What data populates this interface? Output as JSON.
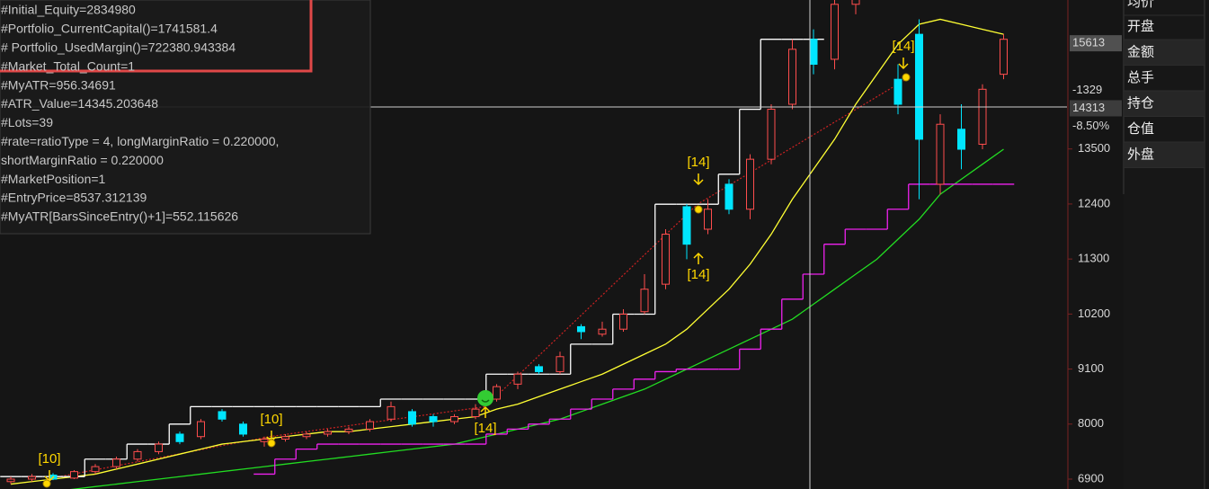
{
  "info_panel": {
    "lines": [
      "#Initial_Equity=2834980",
      "#Portfolio_CurrentCapital()=1741581.4",
      "# Portfolio_UsedMargin()=722380.943384",
      "#Market_Total_Count=1",
      "#MyATR=956.34691",
      "#ATR_Value=14345.203648",
      "#Lots=39",
      "#rate=ratioType = 4, longMarginRatio = 0.220000,",
      "shortMarginRatio = 0.220000",
      "#MarketPosition=1",
      "#EntryPrice=8537.312139",
      "#MyATR[BarsSinceEntry()+1]=552.115626"
    ]
  },
  "quote_panel": {
    "labels": [
      "均价",
      "开盘",
      "金额",
      "总手",
      "持仓",
      "仓值",
      "外盘"
    ]
  },
  "chart": {
    "ylim": [
      6702,
      16486
    ],
    "price_axis": {
      "ticks": [
        13500,
        12400,
        11300,
        10200,
        9100,
        8000,
        6900
      ],
      "last_price": 15613,
      "cursor_price": 14313,
      "cursor_change": -1329,
      "cursor_change_pct": {
        "value": -8.5,
        "label": "-8.50%"
      }
    },
    "up_color": "#ff4d4d",
    "down_color": "#00e5ff",
    "candles": [
      [
        6850,
        6950,
        6800,
        6900
      ],
      [
        6900,
        7000,
        6850,
        6950
      ],
      [
        6980,
        7020,
        6880,
        6900
      ],
      [
        6920,
        7080,
        6900,
        7050
      ],
      [
        7050,
        7200,
        7000,
        7150
      ],
      [
        7150,
        7350,
        7100,
        7300
      ],
      [
        7300,
        7500,
        7250,
        7450
      ],
      [
        7450,
        7650,
        7400,
        7600
      ],
      [
        7800,
        7850,
        7600,
        7650
      ],
      [
        7750,
        8100,
        7700,
        8050
      ],
      [
        8250,
        8300,
        8050,
        8100
      ],
      [
        8000,
        8050,
        7750,
        7800
      ],
      [
        7650,
        7750,
        7550,
        7700
      ],
      [
        7700,
        7800,
        7650,
        7750
      ],
      [
        7750,
        7850,
        7700,
        7800
      ],
      [
        7800,
        7900,
        7750,
        7850
      ],
      [
        7850,
        7950,
        7800,
        7900
      ],
      [
        7900,
        8100,
        7850,
        8050
      ],
      [
        8100,
        8450,
        8050,
        8350
      ],
      [
        8250,
        8300,
        7950,
        8000
      ],
      [
        8150,
        8200,
        7950,
        8050
      ],
      [
        8050,
        8200,
        8000,
        8150
      ],
      [
        8150,
        8400,
        8100,
        8300
      ],
      [
        8500,
        8800,
        8450,
        8750
      ],
      [
        8800,
        9050,
        8700,
        9000
      ],
      [
        9150,
        9200,
        9000,
        9050
      ],
      [
        9050,
        9450,
        9000,
        9350
      ],
      [
        9950,
        10000,
        9700,
        9850
      ],
      [
        9800,
        10050,
        9750,
        9900
      ],
      [
        9900,
        10300,
        9850,
        10200
      ],
      [
        10250,
        11000,
        10200,
        10700
      ],
      [
        10800,
        11900,
        10700,
        11800
      ],
      [
        12350,
        12400,
        11300,
        11600
      ],
      [
        11900,
        12500,
        11800,
        12300
      ],
      [
        12800,
        12900,
        12200,
        12300
      ],
      [
        12300,
        13400,
        12100,
        13300
      ],
      [
        13300,
        14400,
        13200,
        14300
      ],
      [
        14400,
        15700,
        14300,
        15500
      ],
      [
        15700,
        15900,
        15000,
        15200
      ],
      [
        15300,
        16500,
        15100,
        16400
      ],
      [
        16400,
        16900,
        16200,
        16800
      ],
      [
        16700,
        17000,
        16500,
        16600
      ],
      [
        14900,
        15200,
        14200,
        14400
      ],
      [
        15800,
        16100,
        12500,
        13700
      ],
      [
        12800,
        14200,
        12600,
        14000
      ],
      [
        13900,
        14400,
        13100,
        13500
      ],
      [
        13600,
        14800,
        13500,
        14700
      ],
      [
        15000,
        15800,
        14900,
        15700
      ]
    ],
    "indicators": [
      {
        "color": "#ffff33",
        "style": "line",
        "values": [
          6800,
          6850,
          6900,
          6950,
          7000,
          7100,
          7200,
          7300,
          7400,
          7500,
          7600,
          7650,
          7700,
          7750,
          7800,
          7850,
          7850,
          7900,
          7950,
          8000,
          8050,
          8100,
          8150,
          8300,
          8400,
          8550,
          8700,
          8850,
          9000,
          9200,
          9400,
          9600,
          9900,
          10300,
          10700,
          11200,
          11800,
          12500,
          13100,
          13700,
          14400,
          15000,
          15600,
          16000,
          16100,
          16000,
          15900,
          15800
        ]
      },
      {
        "color": "#22dd22",
        "style": "line",
        "values": [
          6550,
          6600,
          6650,
          6700,
          6750,
          6800,
          6850,
          6900,
          6950,
          7000,
          7050,
          7100,
          7150,
          7200,
          7250,
          7300,
          7350,
          7400,
          7450,
          7500,
          7550,
          7600,
          7700,
          7800,
          7900,
          8000,
          8100,
          8250,
          8400,
          8550,
          8700,
          8900,
          9100,
          9300,
          9500,
          9700,
          9900,
          10100,
          10400,
          10700,
          11000,
          11300,
          11700,
          12100,
          12600,
          12900,
          13200,
          13500
        ]
      },
      {
        "color": "#ee22ee",
        "style": "step",
        "values": [
          null,
          null,
          null,
          null,
          null,
          null,
          null,
          null,
          null,
          null,
          null,
          null,
          7000,
          7300,
          7500,
          7600,
          7600,
          7600,
          7600,
          7600,
          7600,
          7600,
          7600,
          7800,
          7900,
          8000,
          8100,
          8300,
          8500,
          8700,
          8900,
          9050,
          9100,
          9100,
          9100,
          9500,
          9900,
          10500,
          11000,
          11600,
          11900,
          11900,
          12300,
          12800,
          12800,
          12800,
          12800,
          12800
        ]
      },
      {
        "color": "#ffffff",
        "style": "step",
        "values": [
          6950,
          6950,
          6950,
          6950,
          7300,
          7300,
          7600,
          7600,
          8000,
          8350,
          8350,
          8350,
          8350,
          8350,
          8350,
          8350,
          8350,
          8350,
          8500,
          8500,
          8500,
          8500,
          8500,
          9000,
          9000,
          9000,
          9000,
          9600,
          9600,
          10200,
          10200,
          12400,
          12400,
          12400,
          13000,
          14300,
          15700,
          15700,
          15700,
          null,
          null,
          null,
          null,
          null,
          null,
          null,
          null,
          null
        ]
      }
    ],
    "trend": {
      "color": "#cc2222",
      "values": [
        6900,
        7750,
        8350,
        12400,
        14900
      ]
    },
    "signals": [
      "[10]",
      "[10]",
      "[14]",
      "[14]",
      "[14]",
      "[14]"
    ]
  }
}
